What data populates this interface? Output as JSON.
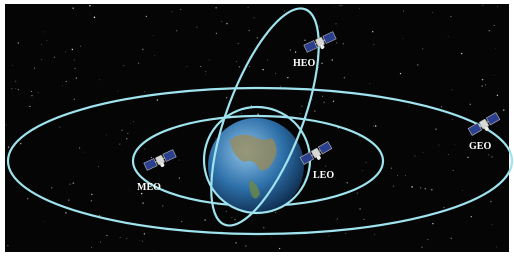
{
  "orbits": [
    {
      "label": "HEO"
    },
    {
      "label": "MEO"
    },
    {
      "label": "LEO"
    },
    {
      "label": "GEO"
    }
  ]
}
